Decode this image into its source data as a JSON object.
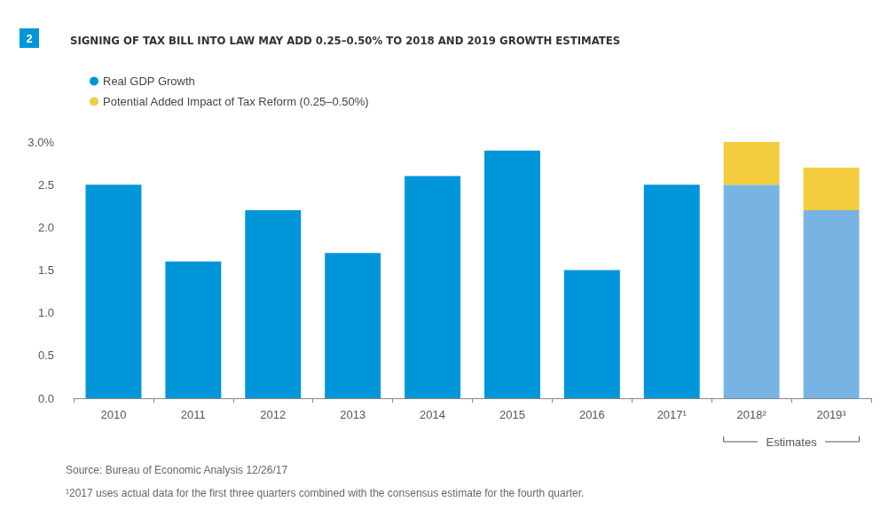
{
  "chart_data": {
    "type": "bar",
    "title": "SIGNING OF TAX BILL INTO LAW MAY ADD 0.25–0.50% TO 2018 AND 2019 GROWTH ESTIMATES",
    "categories": [
      "2010",
      "2011",
      "2012",
      "2013",
      "2014",
      "2015",
      "2016",
      "2017¹",
      "2018²",
      "2019³"
    ],
    "series": [
      {
        "name": "Real GDP Growth",
        "color": "#0096d9",
        "colors": [
          "#0096d9",
          "#0096d9",
          "#0096d9",
          "#0096d9",
          "#0096d9",
          "#0096d9",
          "#0096d9",
          "#0096d9",
          "#78b4e3",
          "#78b4e3"
        ],
        "values": [
          2.5,
          1.6,
          2.2,
          1.7,
          2.6,
          2.9,
          1.5,
          2.5,
          2.5,
          2.2
        ]
      },
      {
        "name": "Potential Added Impact of Tax Reform (0.25–0.50%)",
        "color": "#f4cd3e",
        "values": [
          null,
          null,
          null,
          null,
          null,
          null,
          null,
          null,
          0.5,
          0.5
        ]
      }
    ],
    "stacked": true,
    "ylim": [
      0,
      3
    ],
    "yticks": [
      {
        "value": 0,
        "label": "0.0"
      },
      {
        "value": 0.5,
        "label": "0.5"
      },
      {
        "value": 1,
        "label": "1.0"
      },
      {
        "value": 1.5,
        "label": "1.5"
      },
      {
        "value": 2,
        "label": "2.0"
      },
      {
        "value": 2.5,
        "label": "2.5"
      },
      {
        "value": 3,
        "label": "3.0%"
      }
    ],
    "grid": false,
    "legend": "top left",
    "annotations": [
      "2",
      "Estimates",
      "Source: Bureau of Economic Analysis 12/26/17",
      "¹2017 uses actual data for the first three quarters combined with the consensus estimate for the fourth quarter."
    ]
  }
}
